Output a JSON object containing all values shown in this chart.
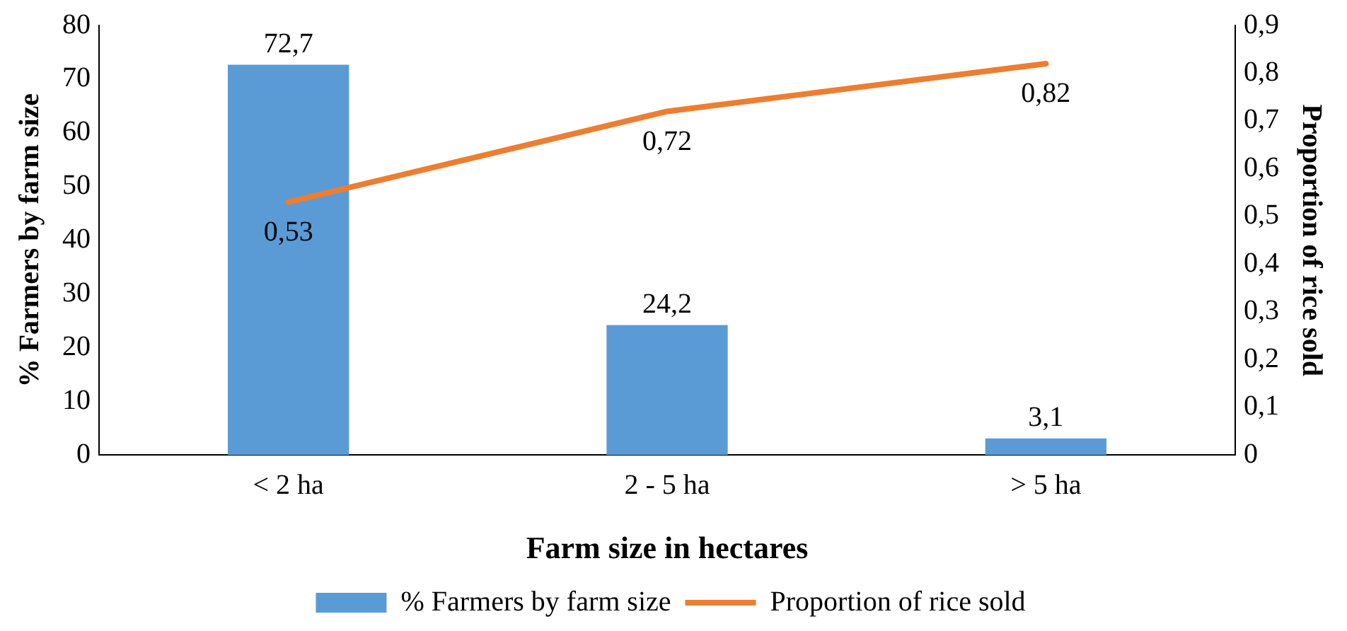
{
  "chart_data": {
    "type": "bar",
    "categories": [
      "< 2 ha",
      "2 - 5 ha",
      "> 5 ha"
    ],
    "xlabel": "Farm size in hectares",
    "ylabel": "% Farmers by farm size",
    "y2label": "Proportion of rice sold",
    "series": [
      {
        "name": "% Farmers by farm size",
        "color": "#5b9bd5",
        "values": [
          72.7,
          24.2,
          3.1
        ],
        "value_labels": [
          "72,7",
          "24,2",
          "3,1"
        ]
      },
      {
        "name": "Proportion of rice sold",
        "type": "line",
        "axis": "y2",
        "color": "#ed7d31",
        "values": [
          0.53,
          0.72,
          0.82
        ],
        "value_labels": [
          "0,53",
          "0,72",
          "0,82"
        ]
      }
    ],
    "ylim": [
      0,
      80
    ],
    "yticks": [
      0,
      10,
      20,
      30,
      40,
      50,
      60,
      70,
      80
    ],
    "y2lim": [
      0,
      0.9
    ],
    "y2ticks": [
      {
        "value": 0,
        "label": "0"
      },
      {
        "value": 0.1,
        "label": "0,1"
      },
      {
        "value": 0.2,
        "label": "0,2"
      },
      {
        "value": 0.3,
        "label": "0,3"
      },
      {
        "value": 0.4,
        "label": "0,4"
      },
      {
        "value": 0.5,
        "label": "0,5"
      },
      {
        "value": 0.6,
        "label": "0,6"
      },
      {
        "value": 0.7,
        "label": "0,7"
      },
      {
        "value": 0.8,
        "label": "0,8"
      },
      {
        "value": 0.9,
        "label": "0,9"
      }
    ],
    "grid": false,
    "legend": "bottom",
    "marker": "none"
  }
}
